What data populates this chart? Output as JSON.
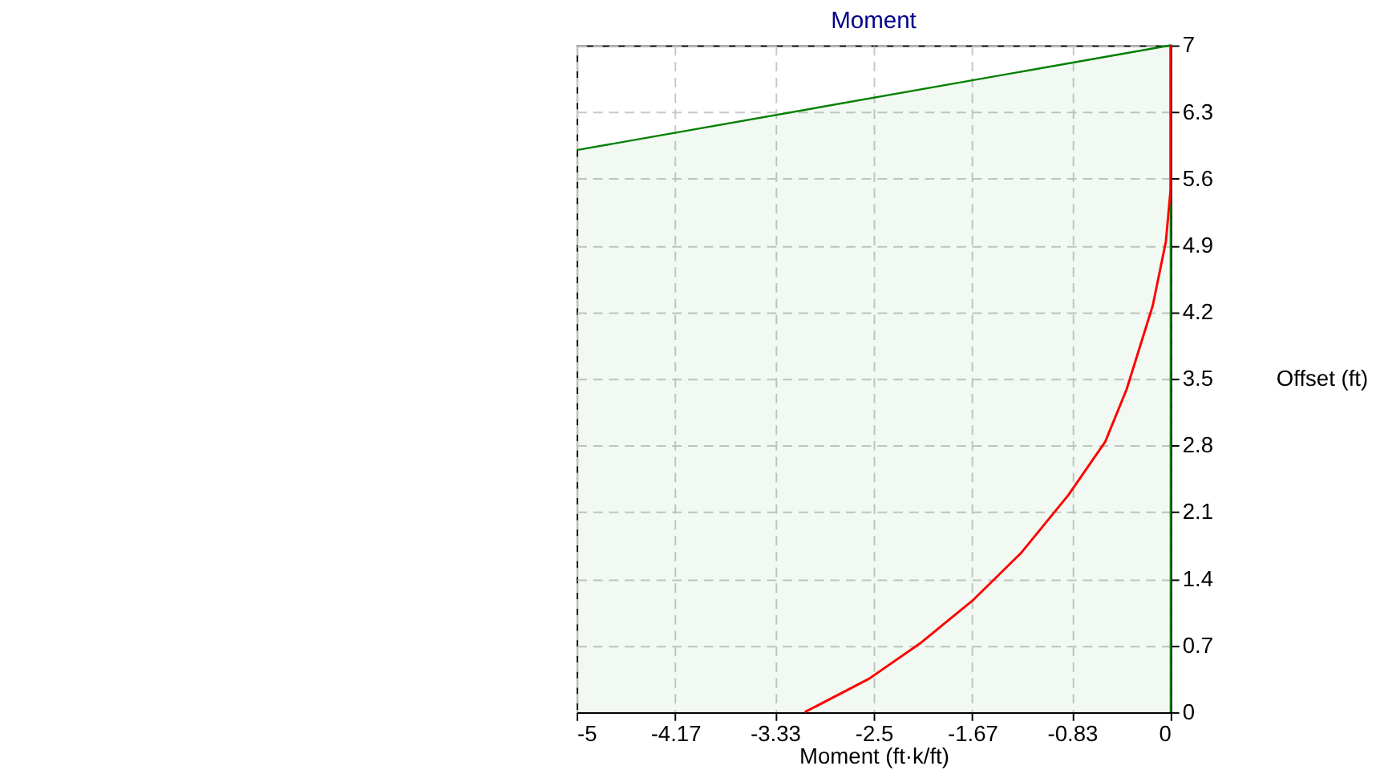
{
  "chart_data": {
    "type": "line",
    "title": "Moment",
    "xlabel": "Moment (ft·k/ft)",
    "ylabel": "Offset (ft)",
    "xlim": [
      -5,
      0
    ],
    "ylim": [
      0,
      7
    ],
    "xticks": [
      -5,
      -4.17,
      -3.33,
      -2.5,
      -1.67,
      -0.83,
      0
    ],
    "yticks": [
      0,
      0.7,
      1.4,
      2.1,
      2.8,
      3.5,
      4.2,
      4.9,
      5.6,
      6.3,
      7
    ],
    "grid": true,
    "line_style": "solid",
    "marker": "none",
    "series": [
      {
        "type": "area",
        "color": "#008000",
        "x": [
          -5,
          0
        ],
        "values": [
          5.9,
          7
        ]
      },
      {
        "color": "#ff0000",
        "x": [
          -3.08,
          -2.54,
          -2.1,
          -1.66,
          -1.26,
          -0.86,
          -0.55,
          -0.37,
          -0.15,
          -0.04,
          0,
          0
        ],
        "values": [
          0,
          0.35,
          0.73,
          1.18,
          1.67,
          2.28,
          2.84,
          3.39,
          4.27,
          4.94,
          5.49,
          7
        ]
      }
    ]
  }
}
